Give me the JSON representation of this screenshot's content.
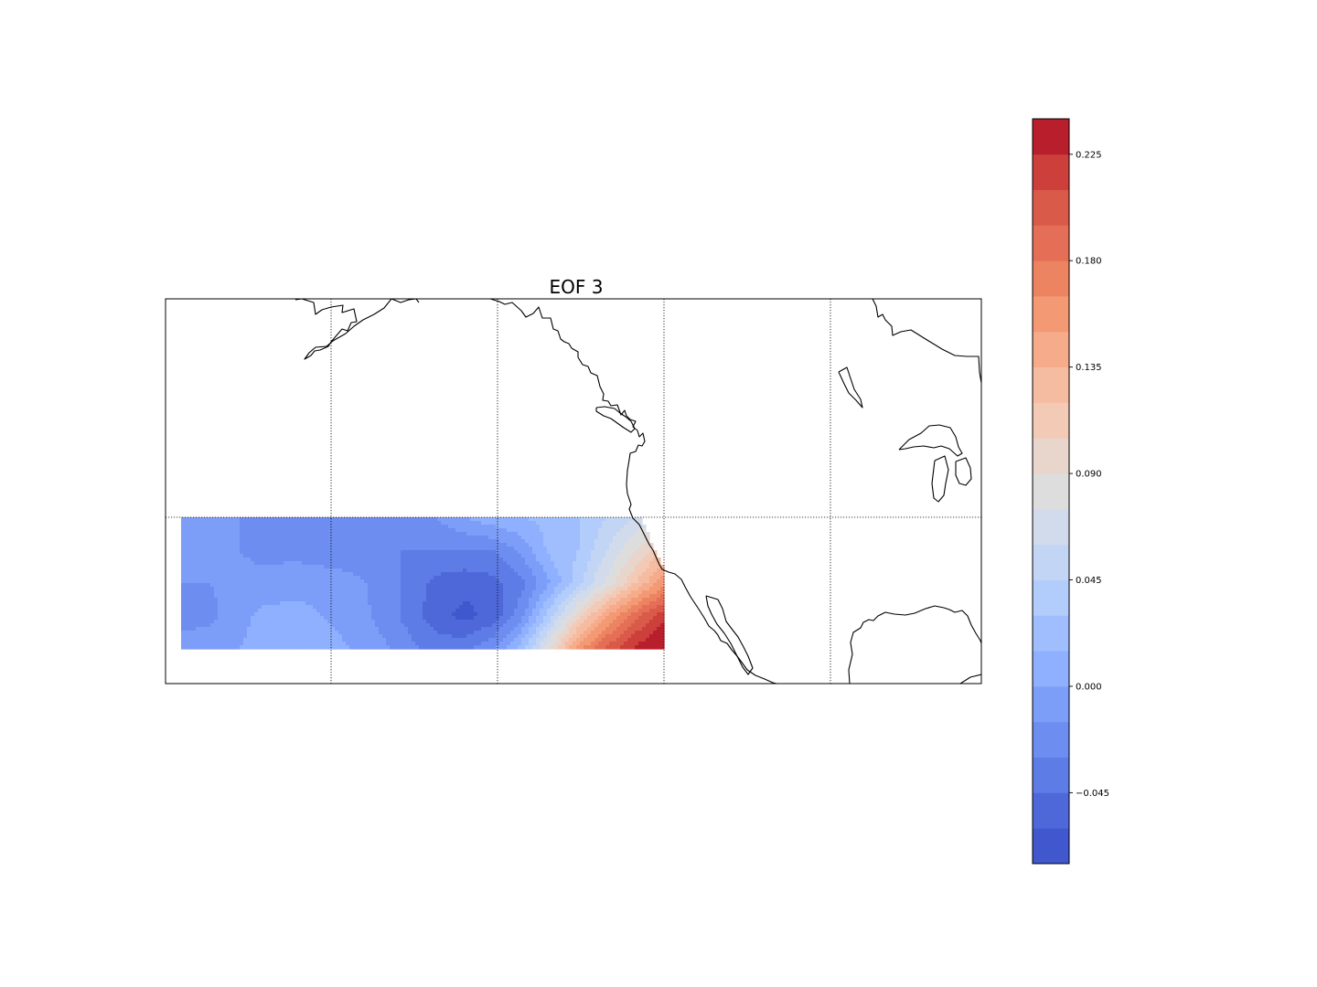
{
  "chart_data": {
    "type": "heatmap",
    "title": "EOF 3",
    "xlabel": "",
    "ylabel": "",
    "grid": true,
    "colormap": "coolwarm",
    "colorbar": {
      "placement": "right",
      "range": [
        -0.075,
        0.24
      ],
      "levels": [
        -0.075,
        -0.06,
        -0.045,
        -0.03,
        -0.015,
        0.0,
        0.015,
        0.03,
        0.045,
        0.06,
        0.075,
        0.09,
        0.105,
        0.12,
        0.135,
        0.15,
        0.165,
        0.18,
        0.195,
        0.21,
        0.225,
        0.24
      ],
      "tick_values": [
        -0.045,
        0.0,
        0.045,
        0.09,
        0.135,
        0.18,
        0.225
      ],
      "tick_labels": [
        "−0.045",
        "0.000",
        "0.045",
        "0.090",
        "0.135",
        "0.180",
        "0.225"
      ],
      "colors": [
        "#4157cd",
        "#4f68d9",
        "#5d7ce6",
        "#6d8df0",
        "#7d9ef8",
        "#8fb0fe",
        "#a0befe",
        "#b2ccfb",
        "#c3d5f4",
        "#d2dbeb",
        "#dddddd",
        "#e8d5cb",
        "#f2cab5",
        "#f6bca1",
        "#f6ab8a",
        "#f39a74",
        "#ec8462",
        "#e46e56",
        "#da5a49",
        "#cc3f3b",
        "#b91e2d"
      ]
    },
    "grid_values": [
      [
        -0.01,
        -0.01,
        -0.015,
        -0.015,
        -0.02,
        -0.02,
        -0.02,
        -0.025,
        -0.02,
        -0.015,
        0.0,
        0.01,
        0.015,
        0.02,
        0.03,
        0.045,
        0.06,
        0.08
      ],
      [
        -0.01,
        -0.01,
        -0.015,
        -0.02,
        -0.02,
        -0.025,
        -0.025,
        -0.03,
        -0.03,
        -0.03,
        -0.03,
        -0.03,
        -0.01,
        0.02,
        0.03,
        0.06,
        0.09,
        0.12
      ],
      [
        -0.015,
        -0.015,
        -0.01,
        -0.01,
        -0.005,
        -0.005,
        -0.01,
        -0.02,
        -0.035,
        -0.05,
        -0.055,
        -0.05,
        -0.035,
        0.0,
        0.04,
        0.08,
        0.12,
        0.16
      ],
      [
        -0.02,
        -0.02,
        -0.005,
        0.005,
        0.005,
        0.0,
        -0.005,
        -0.02,
        -0.035,
        -0.055,
        -0.065,
        -0.055,
        -0.02,
        0.04,
        0.1,
        0.15,
        0.19,
        0.22
      ],
      [
        -0.01,
        -0.005,
        0.0,
        0.005,
        0.005,
        0.005,
        0.0,
        -0.01,
        -0.025,
        -0.035,
        -0.035,
        -0.015,
        0.025,
        0.09,
        0.16,
        0.2,
        0.23,
        0.245
      ]
    ]
  }
}
